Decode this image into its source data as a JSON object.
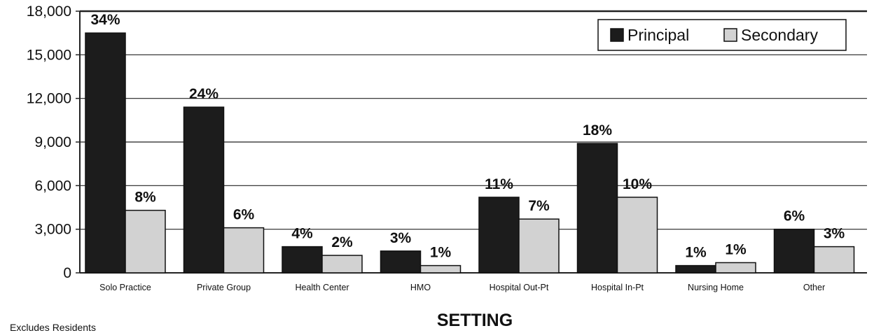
{
  "chart_data": {
    "type": "bar",
    "xlabel": "SETTING",
    "ylabel": "",
    "ylim": [
      0,
      18000
    ],
    "yticks": [
      "0",
      "3,000",
      "6,000",
      "9,000",
      "12,000",
      "15,000",
      "18,000"
    ],
    "grid": true,
    "legend_position": "top-right",
    "categories": [
      "Solo Practice",
      "Private Group",
      "Health Center",
      "HMO",
      "Hospital Out-Pt",
      "Hospital In-Pt",
      "Nursing Home",
      "Other"
    ],
    "series": [
      {
        "name": "Principal",
        "color": "#1c1c1c",
        "values": [
          16500,
          11400,
          1800,
          1500,
          5200,
          8900,
          500,
          3000
        ],
        "labels": [
          "34%",
          "24%",
          "4%",
          "3%",
          "11%",
          "18%",
          "1%",
          "6%"
        ]
      },
      {
        "name": "Secondary",
        "color": "#d2d2d2",
        "values": [
          4300,
          3100,
          1200,
          500,
          3700,
          5200,
          700,
          1800
        ],
        "labels": [
          "8%",
          "6%",
          "2%",
          "1%",
          "7%",
          "10%",
          "1%",
          "3%"
        ]
      }
    ]
  },
  "footnote": "Excludes Residents"
}
